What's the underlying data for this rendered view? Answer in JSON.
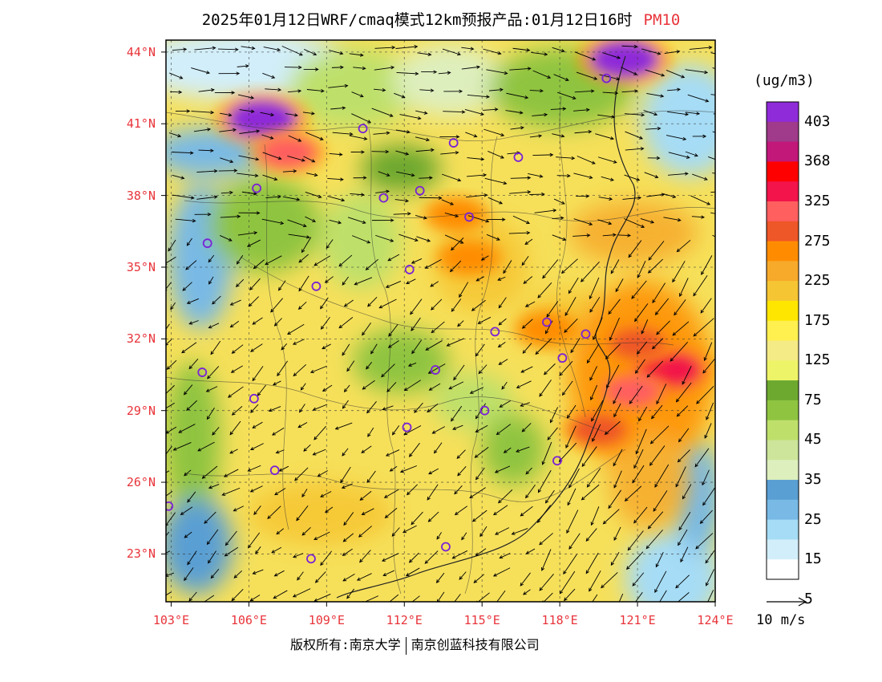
{
  "title": {
    "main": "2025年01月12日WRF/cmaq模式12km预报产品:01月12日16时",
    "variable": "PM10"
  },
  "axes": {
    "lat_labels": [
      "44°N",
      "41°N",
      "38°N",
      "35°N",
      "32°N",
      "29°N",
      "26°N",
      "23°N"
    ],
    "lat_values": [
      44,
      41,
      38,
      35,
      32,
      29,
      26,
      23
    ],
    "lon_labels": [
      "103°E",
      "106°E",
      "109°E",
      "112°E",
      "115°E",
      "118°E",
      "121°E",
      "124°E"
    ],
    "lon_values": [
      103,
      106,
      109,
      112,
      115,
      118,
      121,
      124
    ],
    "lat_range": [
      21.0,
      44.5
    ],
    "lon_range": [
      102.8,
      124.0
    ]
  },
  "colorbar": {
    "unit": "(ug/m3)",
    "labels": [
      "403",
      "368",
      "325",
      "275",
      "225",
      "175",
      "125",
      "75",
      "45",
      "35",
      "25",
      "15",
      "5"
    ],
    "colors": [
      "#8f2bd8",
      "#a03a8a",
      "#c2187a",
      "#ff0000",
      "#f2144a",
      "#ff5f5f",
      "#ee5728",
      "#ff8c00",
      "#f7a92a",
      "#f6c533",
      "#ffe600",
      "#fff050",
      "#f4ea86",
      "#eef468",
      "#6da82f",
      "#8fc441",
      "#bee06b",
      "#cce59a",
      "#deefbe",
      "#5a9fd3",
      "#78b9e6",
      "#a6dcf5",
      "#d2eefa",
      "#ffffff"
    ]
  },
  "wind_reference": {
    "label": "10 m/s"
  },
  "copyright": {
    "left": "版权所有:南京大学",
    "right": "南京创蓝科技有限公司"
  },
  "colors": {
    "axis_label": "#e8343a",
    "station_marker": "#7a22d6",
    "wind_vector": "#000000"
  },
  "stations": [
    {
      "lon": 119.8,
      "lat": 42.9
    },
    {
      "lon": 110.4,
      "lat": 40.8
    },
    {
      "lon": 113.9,
      "lat": 40.2
    },
    {
      "lon": 116.4,
      "lat": 39.6
    },
    {
      "lon": 106.3,
      "lat": 38.3
    },
    {
      "lon": 111.2,
      "lat": 37.9
    },
    {
      "lon": 112.6,
      "lat": 38.2
    },
    {
      "lon": 114.5,
      "lat": 37.1
    },
    {
      "lon": 104.4,
      "lat": 36.0
    },
    {
      "lon": 112.2,
      "lat": 34.9
    },
    {
      "lon": 108.6,
      "lat": 34.2
    },
    {
      "lon": 117.5,
      "lat": 32.7
    },
    {
      "lon": 115.5,
      "lat": 32.3
    },
    {
      "lon": 119.0,
      "lat": 32.2
    },
    {
      "lon": 118.1,
      "lat": 31.2
    },
    {
      "lon": 104.2,
      "lat": 30.6
    },
    {
      "lon": 113.2,
      "lat": 30.7
    },
    {
      "lon": 106.2,
      "lat": 29.5
    },
    {
      "lon": 115.1,
      "lat": 29.0
    },
    {
      "lon": 112.1,
      "lat": 28.3
    },
    {
      "lon": 107.0,
      "lat": 26.5
    },
    {
      "lon": 117.9,
      "lat": 26.9
    },
    {
      "lon": 102.9,
      "lat": 25.0
    },
    {
      "lon": 113.6,
      "lat": 23.3
    },
    {
      "lon": 108.4,
      "lat": 22.8
    }
  ],
  "hotspots": [
    {
      "lon": 106.5,
      "lat": 41.2,
      "level": 403
    },
    {
      "lon": 107.5,
      "lat": 39.8,
      "level": 275
    },
    {
      "lon": 120.5,
      "lat": 43.7,
      "level": 403
    },
    {
      "lon": 122.2,
      "lat": 30.7,
      "level": 325
    },
    {
      "lon": 120.8,
      "lat": 29.8,
      "level": 275
    },
    {
      "lon": 121.0,
      "lat": 31.8,
      "level": 225
    },
    {
      "lon": 119.5,
      "lat": 28.2,
      "level": 225
    },
    {
      "lon": 114.5,
      "lat": 35.4,
      "level": 175
    },
    {
      "lon": 114.0,
      "lat": 37.2,
      "level": 175
    },
    {
      "lon": 117.5,
      "lat": 32.4,
      "level": 175
    }
  ]
}
